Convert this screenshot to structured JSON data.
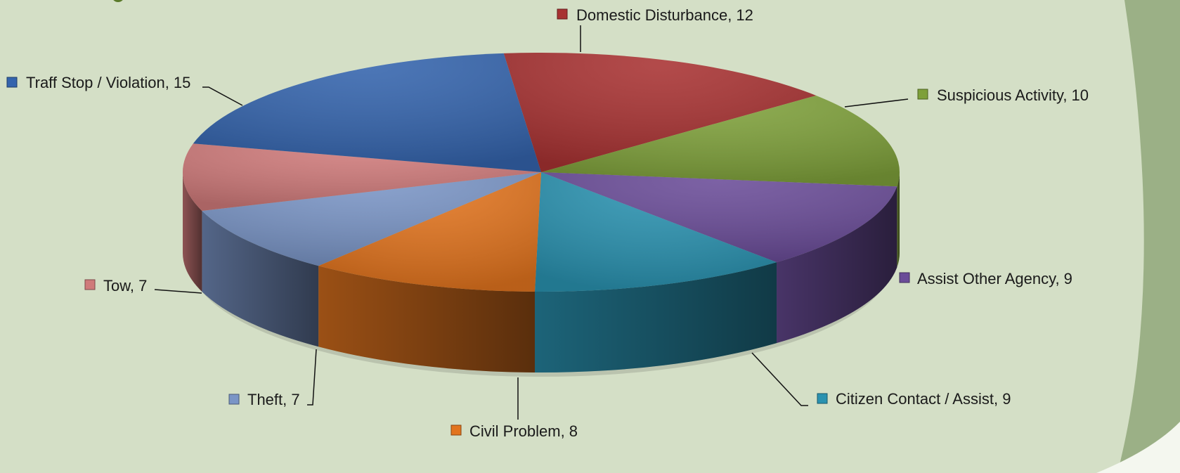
{
  "chart_data": {
    "type": "pie",
    "title": "",
    "slices": [
      {
        "label": "Domestic Disturbance",
        "value": 12,
        "color": "#a83232"
      },
      {
        "label": "Suspicious Activity",
        "value": 10,
        "color": "#7ea03a"
      },
      {
        "label": "Assist Other Agency",
        "value": 9,
        "color": "#6a4c98"
      },
      {
        "label": "Citizen Contact / Assist",
        "value": 9,
        "color": "#2a92b0"
      },
      {
        "label": "Civil Problem",
        "value": 8,
        "color": "#e2741e"
      },
      {
        "label": "Theft, 7",
        "value": 7,
        "color": "#7a95c6"
      },
      {
        "label": "Tow",
        "value": 7,
        "color": "#cf7a7a"
      },
      {
        "label": "Traff Stop / Violation",
        "value": 15,
        "color": "#3464ad"
      }
    ],
    "data_labels": [
      "Domestic Disturbance, 12",
      "Suspicious Activity, 10",
      "Assist Other Agency, 9",
      "Citizen Contact / Assist, 9",
      "Civil Problem, 8",
      "Theft, 7",
      "Tow, 7",
      "Traff Stop / Violation, 15"
    ],
    "legend": "none",
    "style": "3d-exploded-none"
  },
  "colors": {
    "background": "#d4dfc6",
    "decoration": "#8fa57a"
  }
}
